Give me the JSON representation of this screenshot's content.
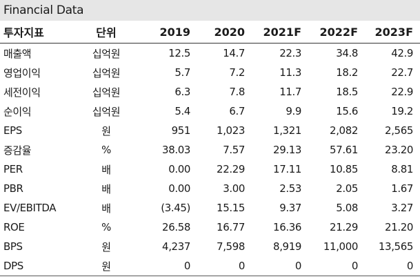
{
  "title": "Financial Data",
  "headers": [
    "투자지표",
    "단위",
    "2019",
    "2020",
    "2021F",
    "2022F",
    "2023F"
  ],
  "rows": [
    {
      "name": "매출액",
      "unit": "십억원",
      "values": [
        "12.5",
        "14.7",
        "22.3",
        "34.8",
        "42.9"
      ]
    },
    {
      "name": "영업이익",
      "unit": "십억원",
      "values": [
        "5.7",
        "7.2",
        "11.3",
        "18.2",
        "22.7"
      ]
    },
    {
      "name": "세전이익",
      "unit": "십억원",
      "values": [
        "6.3",
        "7.8",
        "11.7",
        "18.5",
        "22.9"
      ]
    },
    {
      "name": "순이익",
      "unit": "십억원",
      "values": [
        "5.4",
        "6.7",
        "9.9",
        "15.6",
        "19.2"
      ]
    },
    {
      "name": "EPS",
      "unit": "원",
      "values": [
        "951",
        "1,023",
        "1,321",
        "2,082",
        "2,565"
      ]
    },
    {
      "name": "증감율",
      "unit": "%",
      "values": [
        "38.03",
        "7.57",
        "29.13",
        "57.61",
        "23.20"
      ]
    },
    {
      "name": "PER",
      "unit": "배",
      "values": [
        "0.00",
        "22.29",
        "17.11",
        "10.85",
        "8.81"
      ]
    },
    {
      "name": "PBR",
      "unit": "배",
      "values": [
        "0.00",
        "3.00",
        "2.53",
        "2.05",
        "1.67"
      ]
    },
    {
      "name": "EV/EBITDA",
      "unit": "배",
      "values": [
        "(3.45)",
        "15.15",
        "9.37",
        "5.08",
        "3.27"
      ]
    },
    {
      "name": "ROE",
      "unit": "%",
      "values": [
        "26.58",
        "16.77",
        "16.36",
        "21.29",
        "21.20"
      ]
    },
    {
      "name": "BPS",
      "unit": "원",
      "values": [
        "4,237",
        "7,598",
        "8,919",
        "11,000",
        "13,565"
      ]
    },
    {
      "name": "DPS",
      "unit": "원",
      "values": [
        "0",
        "0",
        "0",
        "0",
        "0"
      ]
    }
  ]
}
